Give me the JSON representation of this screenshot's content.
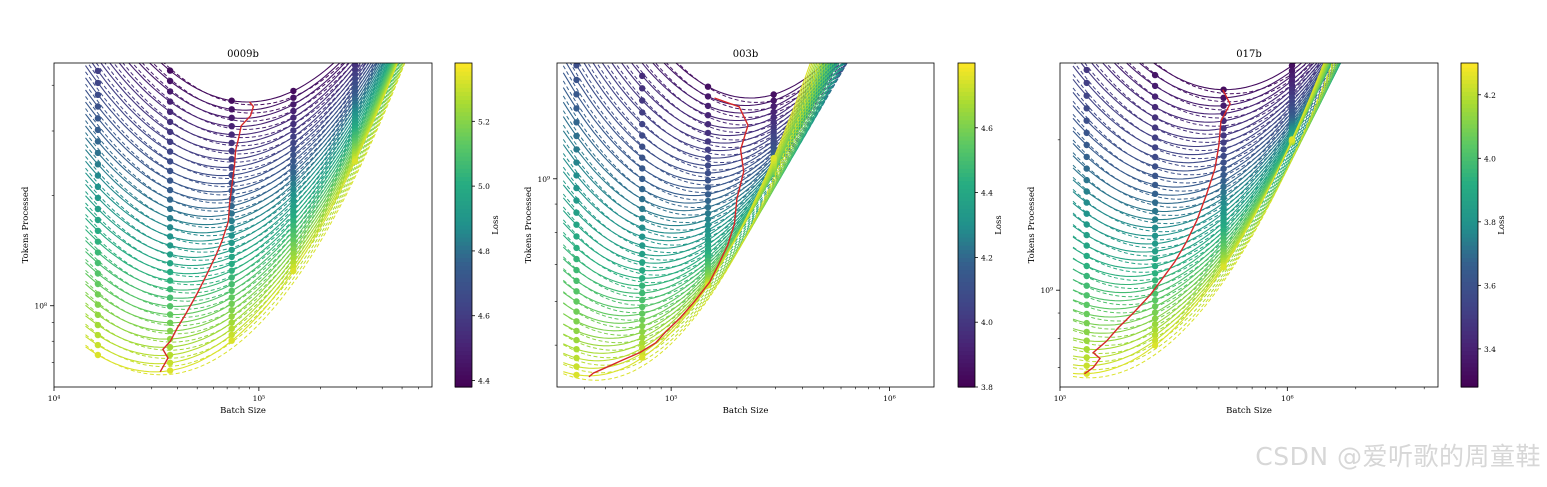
{
  "chart_data": [
    {
      "type": "line",
      "title": "0009b",
      "xlabel": "Batch Size",
      "ylabel": "Tokens Processed",
      "xscale": "log",
      "yscale": "log",
      "xlim": [
        10000,
        700000
      ],
      "ylim": [
        60000000,
        460000000
      ],
      "x_ticks": [
        10000,
        100000
      ],
      "x_tick_labels": [
        "10⁴",
        "10⁵"
      ],
      "y_ticks": [
        100000000
      ],
      "y_tick_labels": [
        "10⁸"
      ],
      "batch_sizes": [
        16384,
        36864,
        73728,
        147456,
        294912,
        589824
      ],
      "colorbar": {
        "label": "Loss",
        "colormap": "viridis",
        "range": [
          4.38,
          5.38
        ],
        "ticks": [
          4.4,
          4.6,
          4.8,
          5.0,
          5.2
        ],
        "tick_labels": [
          "4.4",
          "4.6",
          "4.8",
          "5.0",
          "5.2"
        ]
      },
      "curves": {
        "count": 34,
        "loss_range": [
          4.42,
          5.33
        ],
        "optimal_batch": [
          88000,
          31000
        ],
        "optimal_tokens": [
          360000000,
          66000000
        ],
        "curvature": 0.6
      },
      "optimal_line": {
        "color": "#d62728",
        "points": [
          [
            90000,
            360000000
          ],
          [
            94000,
            350000000
          ],
          [
            91000,
            330000000
          ],
          [
            82000,
            310000000
          ],
          [
            80000,
            290000000
          ],
          [
            77000,
            265000000
          ],
          [
            76000,
            240000000
          ],
          [
            74000,
            215000000
          ],
          [
            72000,
            190000000
          ],
          [
            71000,
            170000000
          ],
          [
            66000,
            150000000
          ],
          [
            62000,
            138000000
          ],
          [
            55000,
            120000000
          ],
          [
            50000,
            108000000
          ],
          [
            44000,
            95000000
          ],
          [
            40000,
            87000000
          ],
          [
            37000,
            80000000
          ],
          [
            34000,
            76000000
          ],
          [
            36000,
            72000000
          ],
          [
            33000,
            66000000
          ]
        ]
      },
      "legend": "none",
      "grid": false
    },
    {
      "type": "line",
      "title": "003b",
      "xlabel": "Batch Size",
      "ylabel": "Tokens Processed",
      "xscale": "log",
      "yscale": "log",
      "xlim": [
        30000,
        1600000
      ],
      "ylim": [
        420000000,
        1620000000
      ],
      "x_ticks": [
        100000,
        1000000
      ],
      "x_tick_labels": [
        "10⁵",
        "10⁶"
      ],
      "y_ticks": [
        1000000000
      ],
      "y_tick_labels": [
        "10⁹"
      ],
      "batch_sizes": [
        36864,
        73728,
        147456,
        294912,
        589824,
        1179648
      ],
      "colorbar": {
        "label": "Loss",
        "colormap": "viridis",
        "range": [
          3.8,
          4.8
        ],
        "ticks": [
          3.8,
          4.0,
          4.2,
          4.4,
          4.6
        ],
        "tick_labels": [
          "3.8",
          "4.0",
          "4.2",
          "4.4",
          "4.6"
        ]
      },
      "curves": {
        "count": 38,
        "loss_range": [
          3.86,
          4.75
        ],
        "optimal_batch": [
          230000,
          42000
        ],
        "optimal_tokens": [
          1400000000,
          440000000
        ],
        "curvature": 0.55
      },
      "optimal_line": {
        "color": "#d62728",
        "points": [
          [
            158000,
            1400000000
          ],
          [
            205000,
            1350000000
          ],
          [
            225000,
            1250000000
          ],
          [
            208000,
            1130000000
          ],
          [
            215000,
            1030000000
          ],
          [
            200000,
            920000000
          ],
          [
            195000,
            830000000
          ],
          [
            182000,
            760000000
          ],
          [
            165000,
            700000000
          ],
          [
            150000,
            650000000
          ],
          [
            128000,
            600000000
          ],
          [
            110000,
            560000000
          ],
          [
            95000,
            530000000
          ],
          [
            85000,
            505000000
          ],
          [
            72000,
            485000000
          ],
          [
            60000,
            470000000
          ],
          [
            50000,
            455000000
          ],
          [
            44000,
            445000000
          ],
          [
            42000,
            438000000
          ]
        ]
      },
      "legend": "none",
      "grid": false
    },
    {
      "type": "line",
      "title": "017b",
      "xlabel": "Batch Size",
      "ylabel": "Tokens Processed",
      "xscale": "log",
      "yscale": "log",
      "xlim": [
        100000,
        4600000
      ],
      "ylim": [
        640000000,
        2850000000
      ],
      "x_ticks": [
        100000,
        1000000
      ],
      "x_tick_labels": [
        "10⁵",
        "10⁶"
      ],
      "y_ticks": [
        1000000000
      ],
      "y_tick_labels": [
        "10⁹"
      ],
      "batch_sizes": [
        131072,
        262144,
        524288,
        1048576,
        2097152,
        4194304
      ],
      "colorbar": {
        "label": "Loss",
        "colormap": "viridis",
        "range": [
          3.28,
          4.3
        ],
        "ticks": [
          3.4,
          3.6,
          3.8,
          4.0,
          4.2
        ],
        "tick_labels": [
          "3.4",
          "3.6",
          "3.8",
          "4.0",
          "4.2"
        ]
      },
      "curves": {
        "count": 36,
        "loss_range": [
          3.33,
          4.25
        ],
        "optimal_batch": [
          530000,
          125000
        ],
        "optimal_tokens": [
          2520000000,
          680000000
        ],
        "curvature": 0.55
      },
      "optimal_line": {
        "color": "#d62728",
        "points": [
          [
            520000,
            2520000000
          ],
          [
            560000,
            2360000000
          ],
          [
            510000,
            2180000000
          ],
          [
            500000,
            1950000000
          ],
          [
            480000,
            1750000000
          ],
          [
            440000,
            1550000000
          ],
          [
            400000,
            1380000000
          ],
          [
            360000,
            1250000000
          ],
          [
            320000,
            1140000000
          ],
          [
            280000,
            1050000000
          ],
          [
            250000,
            980000000
          ],
          [
            210000,
            900000000
          ],
          [
            180000,
            840000000
          ],
          [
            160000,
            790000000
          ],
          [
            140000,
            750000000
          ],
          [
            150000,
            730000000
          ],
          [
            140000,
            700000000
          ],
          [
            128000,
            680000000
          ]
        ]
      },
      "legend": "none",
      "grid": false
    }
  ],
  "watermark": "CSDN @爱听歌的周童鞋"
}
